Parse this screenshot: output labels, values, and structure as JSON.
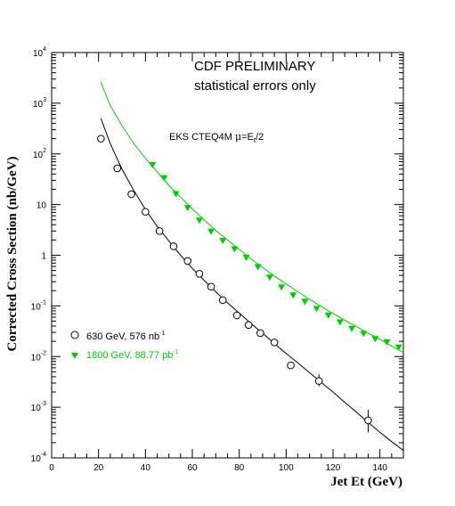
{
  "chart_data": {
    "type": "scatter",
    "xlabel": "Jet Et (GeV)",
    "ylabel": "Corrected Cross Section (nb/GeV)",
    "yscale": "log",
    "xlim": [
      0,
      150
    ],
    "ylim": [
      0.0001,
      10000
    ],
    "x_ticks": [
      "0",
      "20",
      "40",
      "60",
      "80",
      "100",
      "120",
      "140"
    ],
    "y_ticks": [
      {
        "base": "10",
        "exp": "-4"
      },
      {
        "base": "10",
        "exp": "-3"
      },
      {
        "base": "10",
        "exp": "-2"
      },
      {
        "base": "10",
        "exp": "-1"
      },
      {
        "base": "1",
        "exp": ""
      },
      {
        "base": "10",
        "exp": ""
      },
      {
        "base": "10",
        "exp": "2"
      },
      {
        "base": "10",
        "exp": "3"
      },
      {
        "base": "10",
        "exp": "4"
      }
    ],
    "annotations": {
      "line1": "CDF PRELIMINARY",
      "line2": "statistical errors only",
      "theory_main": "EKS CTEQ4M ",
      "theory_mu": "μ",
      "theory_eq": "=E",
      "theory_sub": "t",
      "theory_tail": "/2"
    },
    "legend": [
      {
        "text": "630 GeV, 576 nb",
        "sup": "-1",
        "color": "#000000"
      },
      {
        "text": "1800 GeV, 88.77 pb",
        "sup": "-1",
        "color": "#00cc00"
      }
    ],
    "colors": {
      "s630": "#000000",
      "s1800": "#00cc00"
    },
    "series": [
      {
        "marker": "circle",
        "color": "#000000",
        "x": [
          21,
          28,
          34,
          40,
          46,
          52,
          58,
          63,
          68,
          73,
          79,
          84,
          89,
          95,
          102,
          114,
          135
        ],
        "y": [
          200,
          52,
          16,
          7.2,
          3.0,
          1.5,
          0.77,
          0.43,
          0.24,
          0.13,
          0.065,
          0.042,
          0.029,
          0.019,
          0.0067,
          0.0033,
          0.00055
        ],
        "yerr_high": [
          0,
          0,
          0,
          0,
          0,
          0,
          0,
          0,
          0,
          0,
          0,
          0,
          0,
          0,
          0,
          0.0045,
          0.0009
        ],
        "yerr_low": [
          0,
          0,
          0,
          0,
          0,
          0,
          0,
          0,
          0,
          0,
          0,
          0,
          0,
          0,
          0,
          0.0026,
          0.00032
        ]
      },
      {
        "marker": "triangle-down",
        "color": "#00cc00",
        "x": [
          43,
          48,
          53,
          58,
          63,
          68,
          73,
          78,
          83,
          88,
          93,
          98,
          103,
          108,
          113,
          118,
          123,
          128,
          133,
          138,
          143,
          148
        ],
        "y": [
          60,
          33,
          16,
          8.5,
          4.8,
          2.9,
          1.9,
          1.3,
          0.88,
          0.58,
          0.36,
          0.23,
          0.16,
          0.12,
          0.087,
          0.064,
          0.047,
          0.035,
          0.028,
          0.022,
          0.019,
          0.015
        ]
      }
    ],
    "fit_curves": [
      {
        "color": "#000000",
        "x": [
          21,
          25,
          30,
          35,
          40,
          45,
          50,
          55,
          60,
          65,
          70,
          75,
          80,
          85,
          90,
          95,
          100,
          105,
          110,
          115,
          120,
          125,
          130,
          135,
          140,
          145,
          150
        ],
        "y": [
          500,
          160,
          50,
          19,
          8.0,
          3.7,
          1.9,
          1.0,
          0.55,
          0.32,
          0.19,
          0.115,
          0.072,
          0.045,
          0.029,
          0.018,
          0.0115,
          0.0075,
          0.0048,
          0.0031,
          0.002,
          0.00125,
          0.0008,
          0.0005,
          0.00032,
          0.00021,
          0.00014
        ]
      },
      {
        "color": "#00cc00",
        "x": [
          21,
          25,
          30,
          35,
          40,
          45,
          50,
          55,
          60,
          65,
          70,
          75,
          80,
          85,
          90,
          95,
          100,
          105,
          110,
          115,
          120,
          125,
          130,
          135,
          140,
          145,
          150
        ],
        "y": [
          2600,
          900,
          360,
          160,
          82,
          44,
          24,
          14,
          8.2,
          5.0,
          3.1,
          2.0,
          1.3,
          0.85,
          0.57,
          0.39,
          0.27,
          0.19,
          0.135,
          0.097,
          0.071,
          0.052,
          0.039,
          0.029,
          0.022,
          0.016,
          0.012
        ]
      }
    ]
  }
}
